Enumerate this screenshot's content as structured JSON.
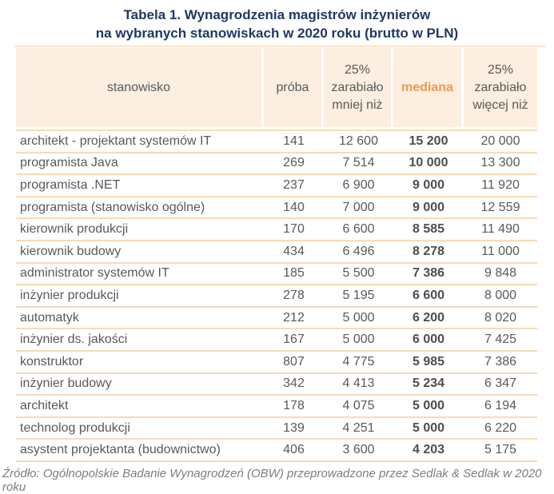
{
  "title": {
    "line1": "Tabela 1. Wynagrodzenia magistrów inżynierów",
    "line2": "na wybranych stanowiskach w 2020 roku (brutto w PLN)"
  },
  "chart_data": {
    "type": "table",
    "columns": [
      "stanowisko",
      "próba",
      "25% zarabiało mniej niż",
      "mediana",
      "25% zarabiało więcej niż"
    ],
    "rows": [
      [
        "architekt - projektant systemów IT",
        "141",
        "12 600",
        "15 200",
        "20 000"
      ],
      [
        "programista Java",
        "269",
        "7 514",
        "10 000",
        "13 300"
      ],
      [
        "programista .NET",
        "237",
        "6 900",
        "9 000",
        "11 920"
      ],
      [
        "programista (stanowisko ogólne)",
        "140",
        "7 000",
        "9 000",
        "12 559"
      ],
      [
        "kierownik produkcji",
        "170",
        "6 600",
        "8 585",
        "11 490"
      ],
      [
        "kierownik budowy",
        "434",
        "6 496",
        "8 278",
        "11 000"
      ],
      [
        "administrator systemów IT",
        "185",
        "5 500",
        "7 386",
        "9 848"
      ],
      [
        "inżynier produkcji",
        "278",
        "5 195",
        "6 600",
        "8 000"
      ],
      [
        "automatyk",
        "212",
        "5 000",
        "6 200",
        "8 020"
      ],
      [
        "inżynier ds. jakości",
        "167",
        "5 000",
        "6 000",
        "7 425"
      ],
      [
        "konstruktor",
        "807",
        "4 775",
        "5 985",
        "7 386"
      ],
      [
        "inżynier budowy",
        "342",
        "4 413",
        "5 234",
        "6 347"
      ],
      [
        "architekt",
        "178",
        "4 075",
        "5 000",
        "6 194"
      ],
      [
        "technolog produkcji",
        "139",
        "4 251",
        "5 000",
        "6 220"
      ],
      [
        "asystent projektanta (budownictwo)",
        "406",
        "3 600",
        "4 203",
        "5 175"
      ]
    ]
  },
  "footer": "Źródło: Ogólnopolskie Badanie Wynagrodzeń (OBW) przeprowadzone przez Sedlak & Sedlak w 2020 roku",
  "colors": {
    "title_navy": "#1f3864",
    "header_bg": "#fceee1",
    "mediana_orange": "#ee9a4e",
    "body_text": "#595959",
    "row_separator": "#f9dab8",
    "footer_gray": "#7d7d7d"
  }
}
